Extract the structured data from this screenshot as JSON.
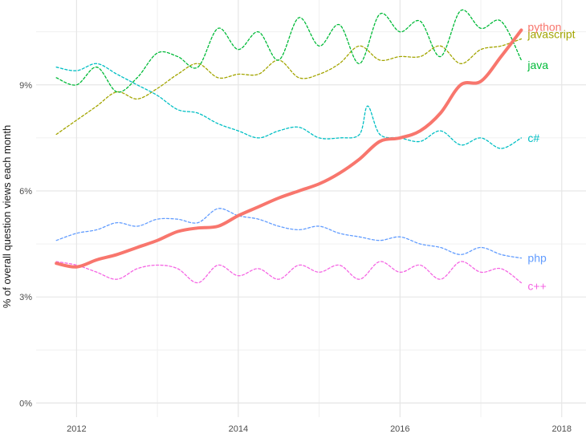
{
  "chart_data": {
    "type": "line",
    "ylabel": "% of overall question views each month",
    "xlabel": "",
    "xlim": [
      2011.5,
      2018.3
    ],
    "ylim": [
      -0.4,
      11.4
    ],
    "x_ticks": [
      2012,
      2014,
      2016,
      2018
    ],
    "x_tick_labels": [
      "2012",
      "2014",
      "2016",
      "2018"
    ],
    "y_ticks": [
      0,
      3,
      6,
      9
    ],
    "y_tick_labels": [
      "0%",
      "3%",
      "6%",
      "9%"
    ],
    "grid": true,
    "legend": "direct-labels-right",
    "series": [
      {
        "name": "python",
        "color": "#f8766d",
        "style": "solid",
        "x": [
          2011.75,
          2012.0,
          2012.25,
          2012.5,
          2012.75,
          2013.0,
          2013.25,
          2013.5,
          2013.75,
          2014.0,
          2014.25,
          2014.5,
          2014.75,
          2015.0,
          2015.25,
          2015.5,
          2015.75,
          2016.0,
          2016.25,
          2016.5,
          2016.75,
          2017.0,
          2017.25,
          2017.5
        ],
        "y": [
          3.95,
          3.85,
          4.05,
          4.2,
          4.4,
          4.6,
          4.85,
          4.95,
          5.0,
          5.3,
          5.55,
          5.8,
          6.0,
          6.2,
          6.5,
          6.9,
          7.4,
          7.5,
          7.7,
          8.2,
          9.0,
          9.1,
          9.8,
          10.55
        ]
      },
      {
        "name": "javascript",
        "color": "#a3a500",
        "style": "dashed",
        "x": [
          2011.75,
          2012.0,
          2012.25,
          2012.5,
          2012.75,
          2013.0,
          2013.25,
          2013.5,
          2013.75,
          2014.0,
          2014.25,
          2014.5,
          2014.75,
          2015.0,
          2015.25,
          2015.5,
          2015.75,
          2016.0,
          2016.25,
          2016.5,
          2016.75,
          2017.0,
          2017.25,
          2017.5
        ],
        "y": [
          7.6,
          8.0,
          8.4,
          8.8,
          8.6,
          8.9,
          9.3,
          9.6,
          9.2,
          9.3,
          9.3,
          9.7,
          9.2,
          9.3,
          9.6,
          10.1,
          9.7,
          9.8,
          9.8,
          10.1,
          9.6,
          10.0,
          10.1,
          10.3
        ]
      },
      {
        "name": "java",
        "color": "#00ba38",
        "style": "dashed",
        "x": [
          2011.75,
          2012.0,
          2012.25,
          2012.5,
          2012.75,
          2013.0,
          2013.25,
          2013.5,
          2013.75,
          2014.0,
          2014.25,
          2014.5,
          2014.75,
          2015.0,
          2015.25,
          2015.5,
          2015.75,
          2016.0,
          2016.25,
          2016.5,
          2016.75,
          2017.0,
          2017.25,
          2017.5
        ],
        "y": [
          9.2,
          9.0,
          9.5,
          8.8,
          9.2,
          9.9,
          9.8,
          9.5,
          10.6,
          10.0,
          10.5,
          9.7,
          10.9,
          10.1,
          10.7,
          9.6,
          11.0,
          10.5,
          10.8,
          9.8,
          11.1,
          10.6,
          10.8,
          9.7
        ]
      },
      {
        "name": "c#",
        "color": "#00bfc4",
        "style": "dashed",
        "x": [
          2011.75,
          2012.0,
          2012.25,
          2012.5,
          2012.75,
          2013.0,
          2013.25,
          2013.5,
          2013.75,
          2014.0,
          2014.25,
          2014.5,
          2014.75,
          2015.0,
          2015.25,
          2015.5,
          2015.6,
          2015.75,
          2016.0,
          2016.25,
          2016.5,
          2016.75,
          2017.0,
          2017.25,
          2017.5
        ],
        "y": [
          9.5,
          9.4,
          9.6,
          9.3,
          9.0,
          8.7,
          8.3,
          8.2,
          7.9,
          7.7,
          7.5,
          7.7,
          7.8,
          7.5,
          7.5,
          7.6,
          8.4,
          7.6,
          7.5,
          7.4,
          7.7,
          7.3,
          7.5,
          7.2,
          7.5
        ]
      },
      {
        "name": "php",
        "color": "#619cff",
        "style": "dashed",
        "x": [
          2011.75,
          2012.0,
          2012.25,
          2012.5,
          2012.75,
          2013.0,
          2013.25,
          2013.5,
          2013.75,
          2014.0,
          2014.25,
          2014.5,
          2014.75,
          2015.0,
          2015.25,
          2015.5,
          2015.75,
          2016.0,
          2016.25,
          2016.5,
          2016.75,
          2017.0,
          2017.25,
          2017.5
        ],
        "y": [
          4.6,
          4.8,
          4.9,
          5.1,
          5.0,
          5.2,
          5.2,
          5.1,
          5.5,
          5.3,
          5.2,
          5.0,
          4.9,
          5.0,
          4.8,
          4.7,
          4.6,
          4.7,
          4.5,
          4.4,
          4.2,
          4.4,
          4.2,
          4.1
        ]
      },
      {
        "name": "c++",
        "color": "#f564e3",
        "style": "dashed",
        "x": [
          2011.75,
          2012.0,
          2012.25,
          2012.5,
          2012.75,
          2013.0,
          2013.25,
          2013.5,
          2013.75,
          2014.0,
          2014.25,
          2014.5,
          2014.75,
          2015.0,
          2015.25,
          2015.5,
          2015.75,
          2016.0,
          2016.25,
          2016.5,
          2016.75,
          2017.0,
          2017.25,
          2017.5
        ],
        "y": [
          4.0,
          3.9,
          3.7,
          3.5,
          3.8,
          3.9,
          3.8,
          3.4,
          3.9,
          3.6,
          3.8,
          3.5,
          3.9,
          3.7,
          3.9,
          3.5,
          4.0,
          3.7,
          3.9,
          3.5,
          4.0,
          3.7,
          3.8,
          3.4
        ]
      }
    ]
  }
}
